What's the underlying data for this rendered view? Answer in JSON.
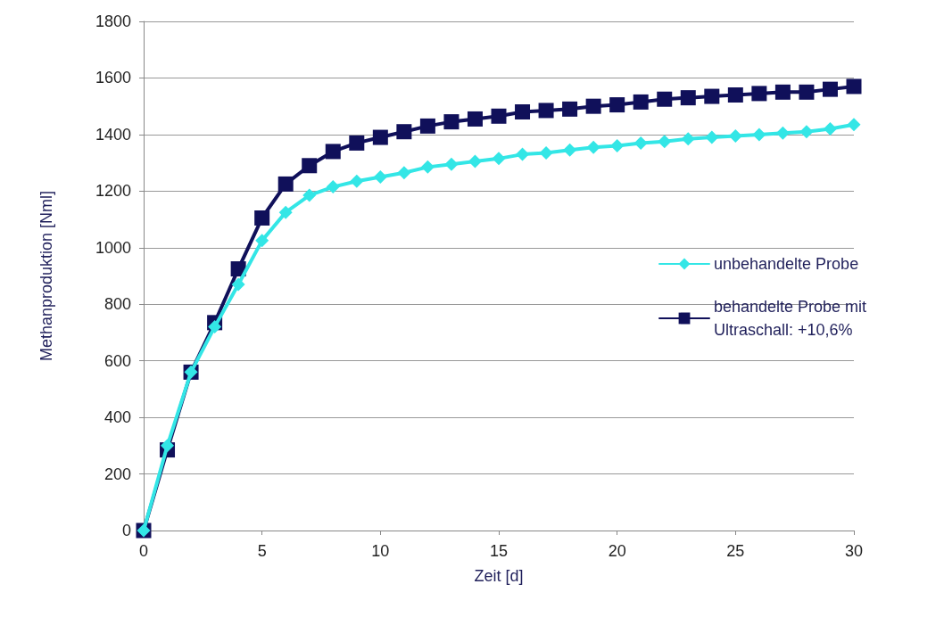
{
  "chart_data": {
    "type": "line",
    "xlabel": "Zeit [d]",
    "ylabel": "Methanproduktion [Nml]",
    "x": [
      0,
      1,
      2,
      3,
      4,
      5,
      6,
      7,
      8,
      9,
      10,
      11,
      12,
      13,
      14,
      15,
      16,
      17,
      18,
      19,
      20,
      21,
      22,
      23,
      24,
      25,
      26,
      27,
      28,
      29,
      30
    ],
    "series": [
      {
        "name": "unbehandelte Probe",
        "color": "#33e6e6",
        "marker": "diamond",
        "values": [
          0,
          300,
          560,
          720,
          870,
          1025,
          1125,
          1185,
          1215,
          1235,
          1250,
          1265,
          1285,
          1295,
          1305,
          1315,
          1330,
          1335,
          1345,
          1355,
          1360,
          1370,
          1375,
          1385,
          1390,
          1395,
          1400,
          1405,
          1410,
          1420,
          1435
        ]
      },
      {
        "name": "behandelte Probe mit Ultraschall: +10,6%",
        "color": "#10105a",
        "marker": "square",
        "values": [
          0,
          285,
          560,
          735,
          925,
          1105,
          1225,
          1290,
          1340,
          1370,
          1390,
          1410,
          1430,
          1445,
          1455,
          1465,
          1480,
          1485,
          1490,
          1500,
          1505,
          1515,
          1525,
          1530,
          1535,
          1540,
          1545,
          1550,
          1550,
          1560,
          1570
        ]
      }
    ],
    "xlim": [
      0,
      30
    ],
    "xticks": [
      0,
      5,
      10,
      15,
      20,
      25,
      30
    ],
    "ylim": [
      0,
      1800
    ],
    "yticks": [
      0,
      200,
      400,
      600,
      800,
      1000,
      1200,
      1400,
      1600,
      1800
    ],
    "grid": "y",
    "legend": "right",
    "line_style": "solid"
  }
}
